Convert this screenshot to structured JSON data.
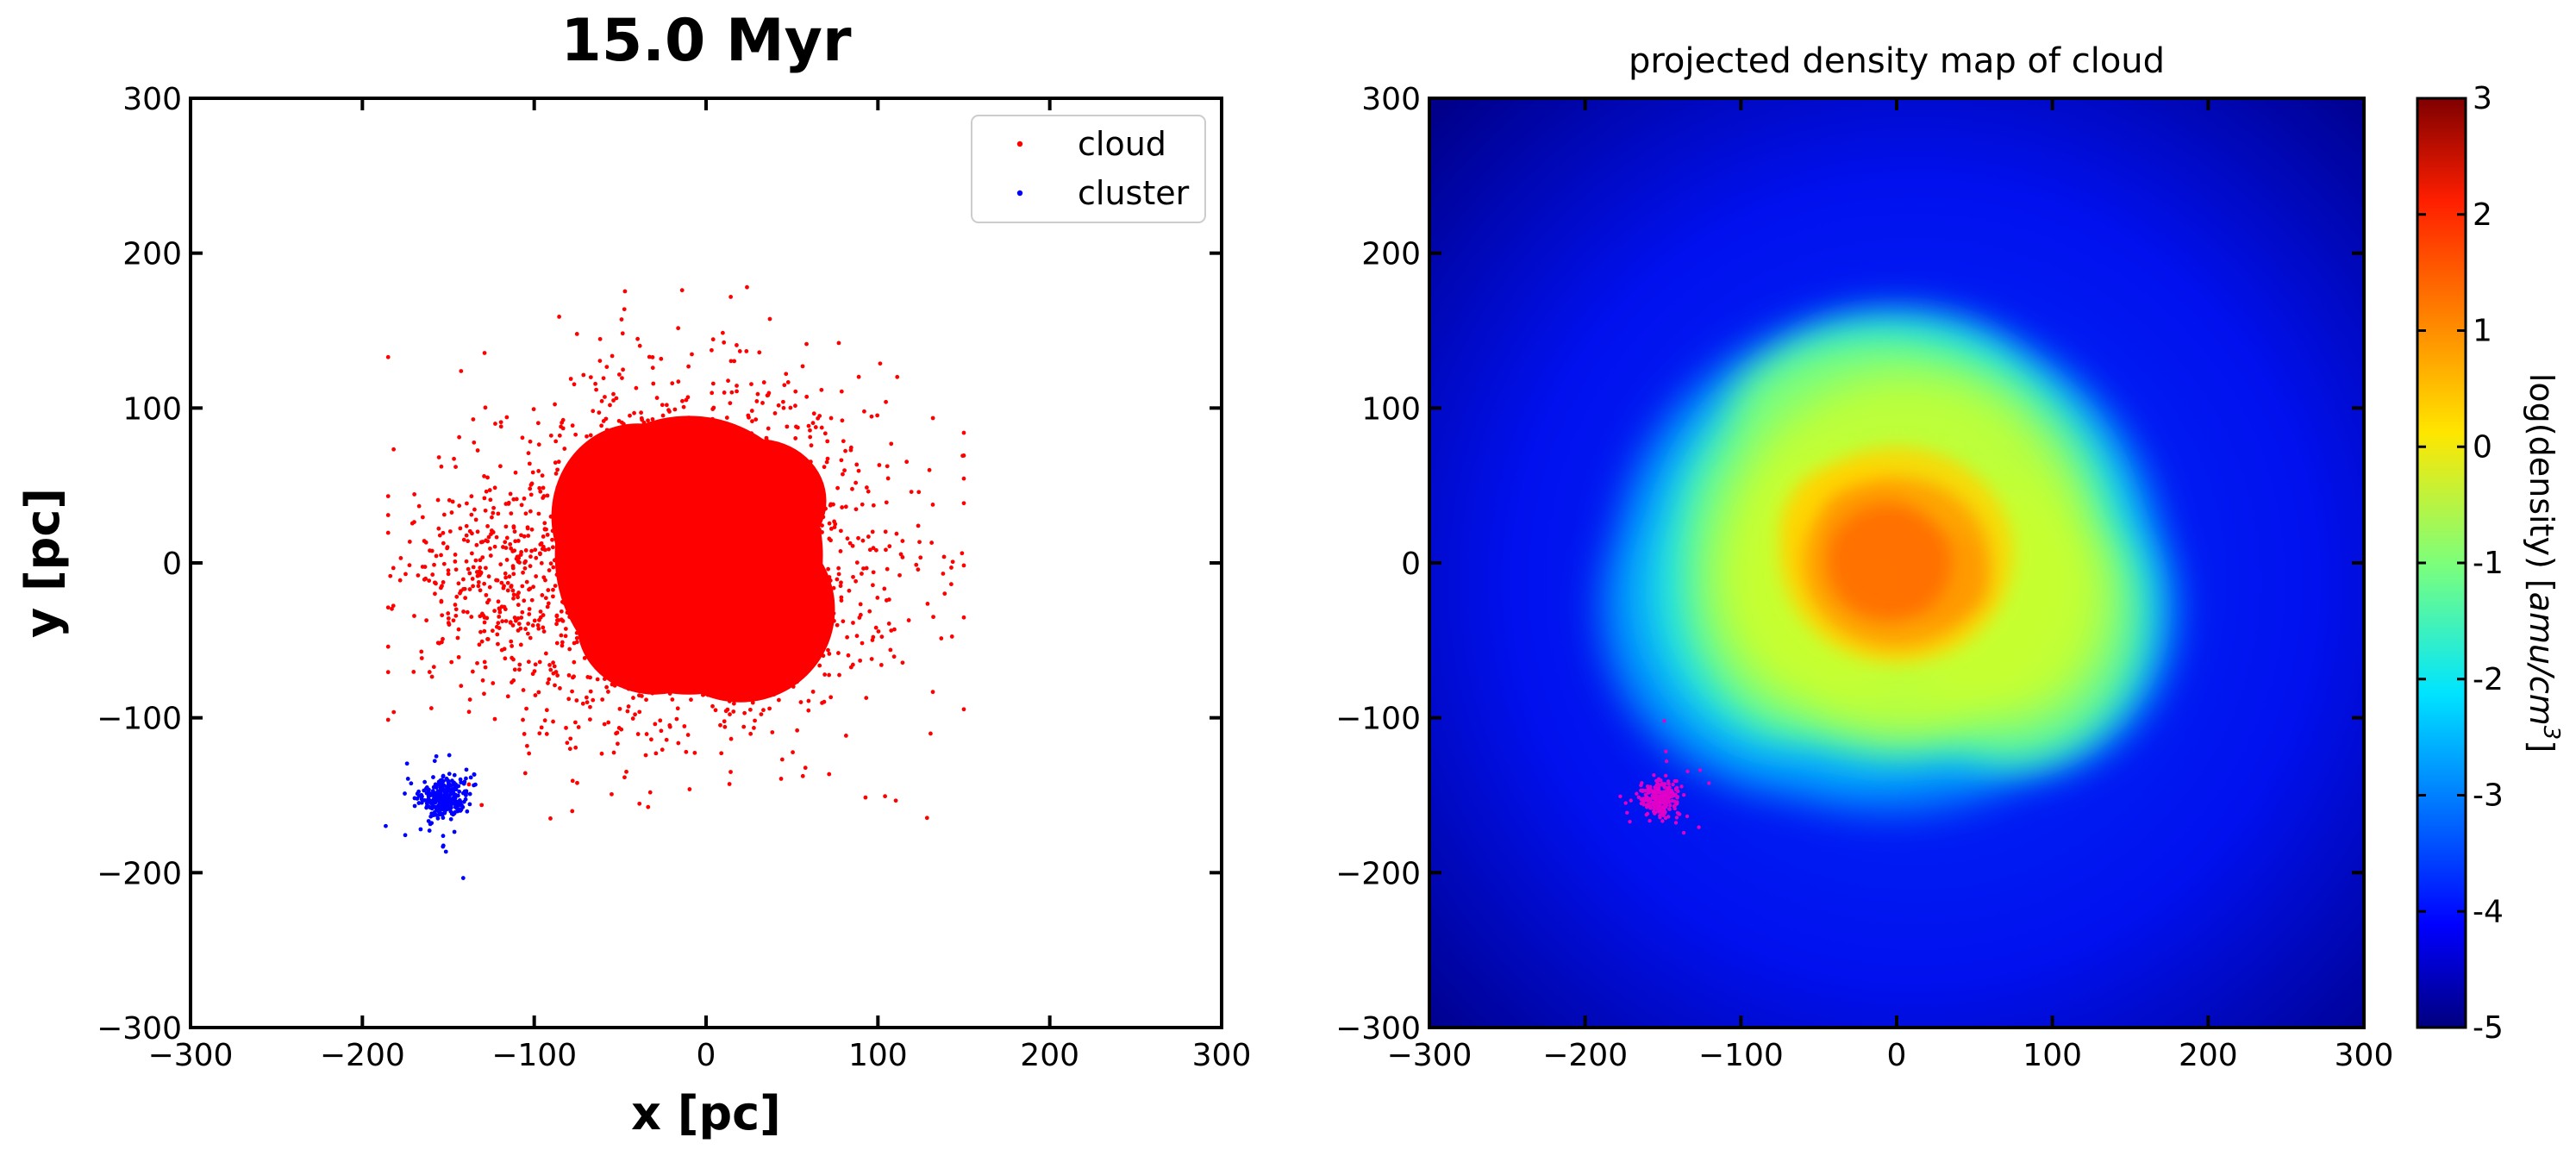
{
  "chart_data": [
    {
      "type": "scatter",
      "title": "15.0 Myr",
      "xlabel": "x [pc]",
      "ylabel": "y [pc]",
      "xlim": [
        -300,
        300
      ],
      "ylim": [
        -300,
        300
      ],
      "x_ticks": [
        "−300",
        "−200",
        "−100",
        "0",
        "100",
        "200",
        "300"
      ],
      "y_ticks": [
        "300",
        "200",
        "100",
        "0",
        "−100",
        "−200",
        "−300"
      ],
      "legend_placement": "top-right",
      "series": [
        {
          "name": "cloud",
          "color": "#ff0000",
          "center": [
            -10,
            5
          ],
          "extent_x": [
            -185,
            150
          ],
          "extent_y": [
            -165,
            178
          ]
        },
        {
          "name": "cluster",
          "color": "#0000ff",
          "center": [
            -152,
            -152
          ],
          "extent_x": [
            -175,
            -120
          ],
          "extent_y": [
            -195,
            -118
          ]
        }
      ]
    },
    {
      "type": "heatmap",
      "title": "projected density map of cloud",
      "xlim": [
        -300,
        300
      ],
      "ylim": [
        -300,
        300
      ],
      "x_ticks": [
        "−300",
        "−200",
        "−100",
        "0",
        "100",
        "200",
        "300"
      ],
      "y_ticks": [
        "300",
        "200",
        "100",
        "0",
        "−100",
        "−200",
        "−300"
      ],
      "colormap": "jet",
      "colorbar": {
        "range": [
          -5,
          3
        ],
        "ticks": [
          "3",
          "2",
          "1",
          "0",
          "-1",
          "-2",
          "-3",
          "-4",
          "-5"
        ],
        "label_prefix": "log(density) [",
        "label_unit": "amu/cm",
        "label_exp": "3",
        "label_suffix": "]"
      },
      "overlay": {
        "name": "cluster",
        "color": "#e000c8",
        "center": [
          -152,
          -152
        ]
      }
    }
  ]
}
